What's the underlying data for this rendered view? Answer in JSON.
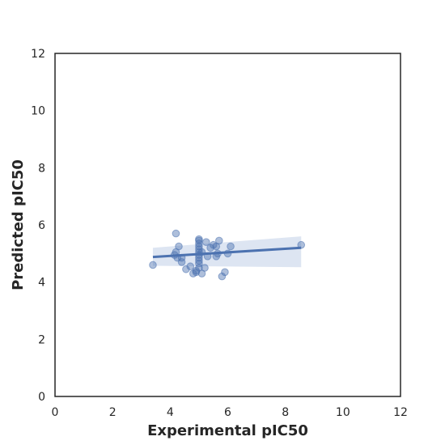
{
  "chart_data": {
    "type": "scatter",
    "title": "",
    "xlabel": "Experimental pIC50",
    "ylabel": "Predicted pIC50",
    "xlim": [
      0,
      12
    ],
    "ylim": [
      0,
      12
    ],
    "xticks": [
      "0",
      "2",
      "4",
      "6",
      "8",
      "10",
      "12"
    ],
    "yticks": [
      "0",
      "2",
      "4",
      "6",
      "8",
      "10",
      "12"
    ],
    "grid": false,
    "legend": "none",
    "colors": {
      "points": "#4c72b0",
      "line": "#4c72b0",
      "band": "#c7d3ea",
      "frame": "#262626"
    },
    "points": [
      {
        "x": 3.4,
        "y": 4.6
      },
      {
        "x": 4.15,
        "y": 4.95
      },
      {
        "x": 4.2,
        "y": 5.05
      },
      {
        "x": 4.25,
        "y": 4.85
      },
      {
        "x": 4.2,
        "y": 5.7
      },
      {
        "x": 4.3,
        "y": 5.25
      },
      {
        "x": 4.4,
        "y": 4.7
      },
      {
        "x": 4.4,
        "y": 4.85
      },
      {
        "x": 4.55,
        "y": 4.45
      },
      {
        "x": 4.7,
        "y": 4.55
      },
      {
        "x": 4.8,
        "y": 4.3
      },
      {
        "x": 4.9,
        "y": 4.4
      },
      {
        "x": 4.9,
        "y": 4.35
      },
      {
        "x": 5.0,
        "y": 5.5
      },
      {
        "x": 5.0,
        "y": 5.45
      },
      {
        "x": 5.0,
        "y": 5.35
      },
      {
        "x": 5.0,
        "y": 5.25
      },
      {
        "x": 5.0,
        "y": 5.15
      },
      {
        "x": 5.0,
        "y": 5.05
      },
      {
        "x": 5.0,
        "y": 4.95
      },
      {
        "x": 5.0,
        "y": 4.85
      },
      {
        "x": 5.0,
        "y": 4.75
      },
      {
        "x": 5.0,
        "y": 4.65
      },
      {
        "x": 5.0,
        "y": 4.5
      },
      {
        "x": 5.1,
        "y": 4.3
      },
      {
        "x": 5.1,
        "y": 5.05
      },
      {
        "x": 5.2,
        "y": 4.5
      },
      {
        "x": 5.25,
        "y": 5.4
      },
      {
        "x": 5.3,
        "y": 4.9
      },
      {
        "x": 5.4,
        "y": 5.2
      },
      {
        "x": 5.5,
        "y": 5.3
      },
      {
        "x": 5.6,
        "y": 4.9
      },
      {
        "x": 5.6,
        "y": 5.25
      },
      {
        "x": 5.65,
        "y": 5.0
      },
      {
        "x": 5.7,
        "y": 5.45
      },
      {
        "x": 5.8,
        "y": 4.2
      },
      {
        "x": 5.9,
        "y": 4.35
      },
      {
        "x": 6.0,
        "y": 5.0
      },
      {
        "x": 6.1,
        "y": 5.25
      },
      {
        "x": 8.55,
        "y": 5.3
      }
    ],
    "regression": {
      "x": [
        3.4,
        8.55
      ],
      "y": [
        4.88,
        5.2
      ],
      "ci_upper": [
        5.2,
        5.6
      ],
      "ci_lower": [
        4.57,
        4.52
      ]
    }
  }
}
